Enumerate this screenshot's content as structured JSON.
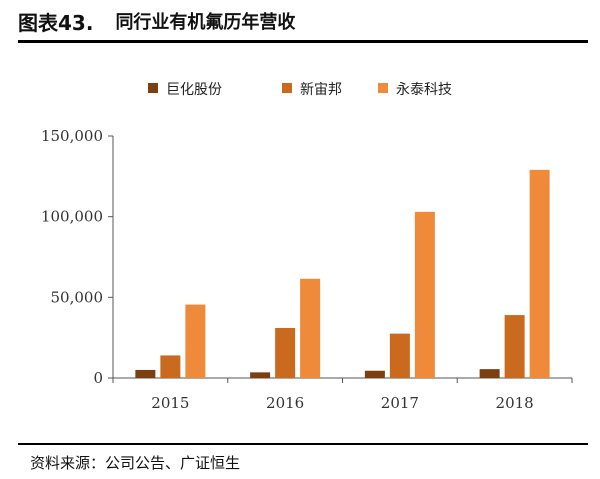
{
  "figure": {
    "number": "图表43.",
    "title": "同行业有机氟历年营收",
    "source": "资料来源：公司公告、广证恒生"
  },
  "chart_data": {
    "type": "bar",
    "categories": [
      "2015",
      "2016",
      "2017",
      "2018"
    ],
    "series": [
      {
        "name": "巨化股份",
        "color": "#7B3F12",
        "values": [
          5000,
          3500,
          4500,
          5500
        ]
      },
      {
        "name": "新宙邦",
        "color": "#C96A1F",
        "values": [
          14000,
          31000,
          27500,
          39000
        ]
      },
      {
        "name": "永泰科技",
        "color": "#EE8A3A",
        "values": [
          45500,
          61500,
          103000,
          129000
        ]
      }
    ],
    "ylim": [
      0,
      150000
    ],
    "yticks": [
      0,
      50000,
      100000,
      150000
    ],
    "ytick_labels": [
      "0",
      "50,000",
      "100,000",
      "150,000"
    ],
    "legend": "top",
    "grid": false,
    "title": "",
    "xlabel": "",
    "ylabel": ""
  }
}
